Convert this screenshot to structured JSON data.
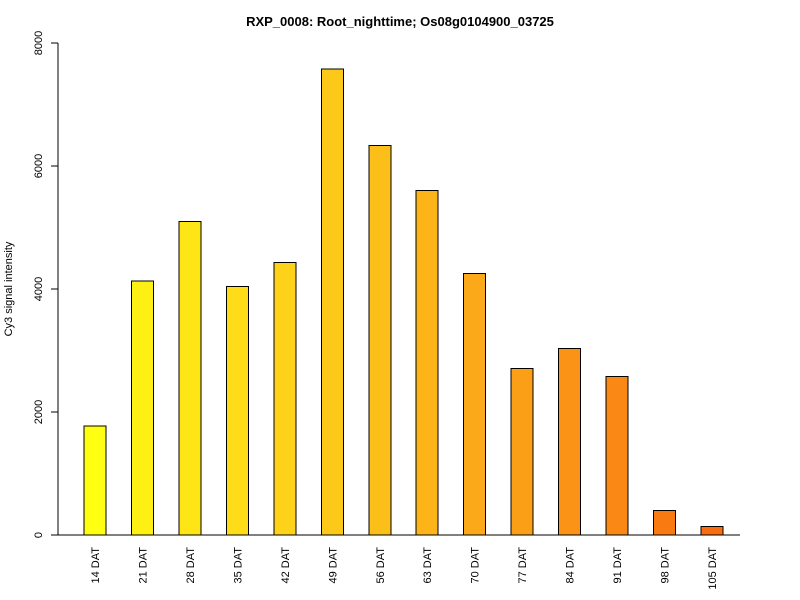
{
  "chart_data": {
    "type": "bar",
    "title": "RXP_0008: Root_nighttime; Os08g0104900_03725",
    "xlabel": "",
    "ylabel": "Cy3 signal intensity",
    "categories": [
      "14 DAT",
      "21 DAT",
      "28 DAT",
      "35 DAT",
      "42 DAT",
      "49 DAT",
      "56 DAT",
      "63 DAT",
      "70 DAT",
      "77 DAT",
      "84 DAT",
      "91 DAT",
      "98 DAT",
      "105 DAT"
    ],
    "values": [
      1770,
      4130,
      5100,
      4040,
      4430,
      7580,
      6330,
      5600,
      4250,
      2710,
      3030,
      2580,
      400,
      140
    ],
    "ylim": [
      0,
      8000
    ],
    "yticks": [
      0,
      2000,
      4000,
      6000,
      8000
    ],
    "colors": [
      "#FFFF12",
      "#FFF014",
      "#FEE516",
      "#FEDC17",
      "#FDD218",
      "#FDC918",
      "#FCBE18",
      "#FCB418",
      "#FBA918",
      "#FB9F17",
      "#FA9316",
      "#F98814",
      "#F97A11",
      "#F86D0F"
    ],
    "grid": false,
    "legend": "none"
  }
}
